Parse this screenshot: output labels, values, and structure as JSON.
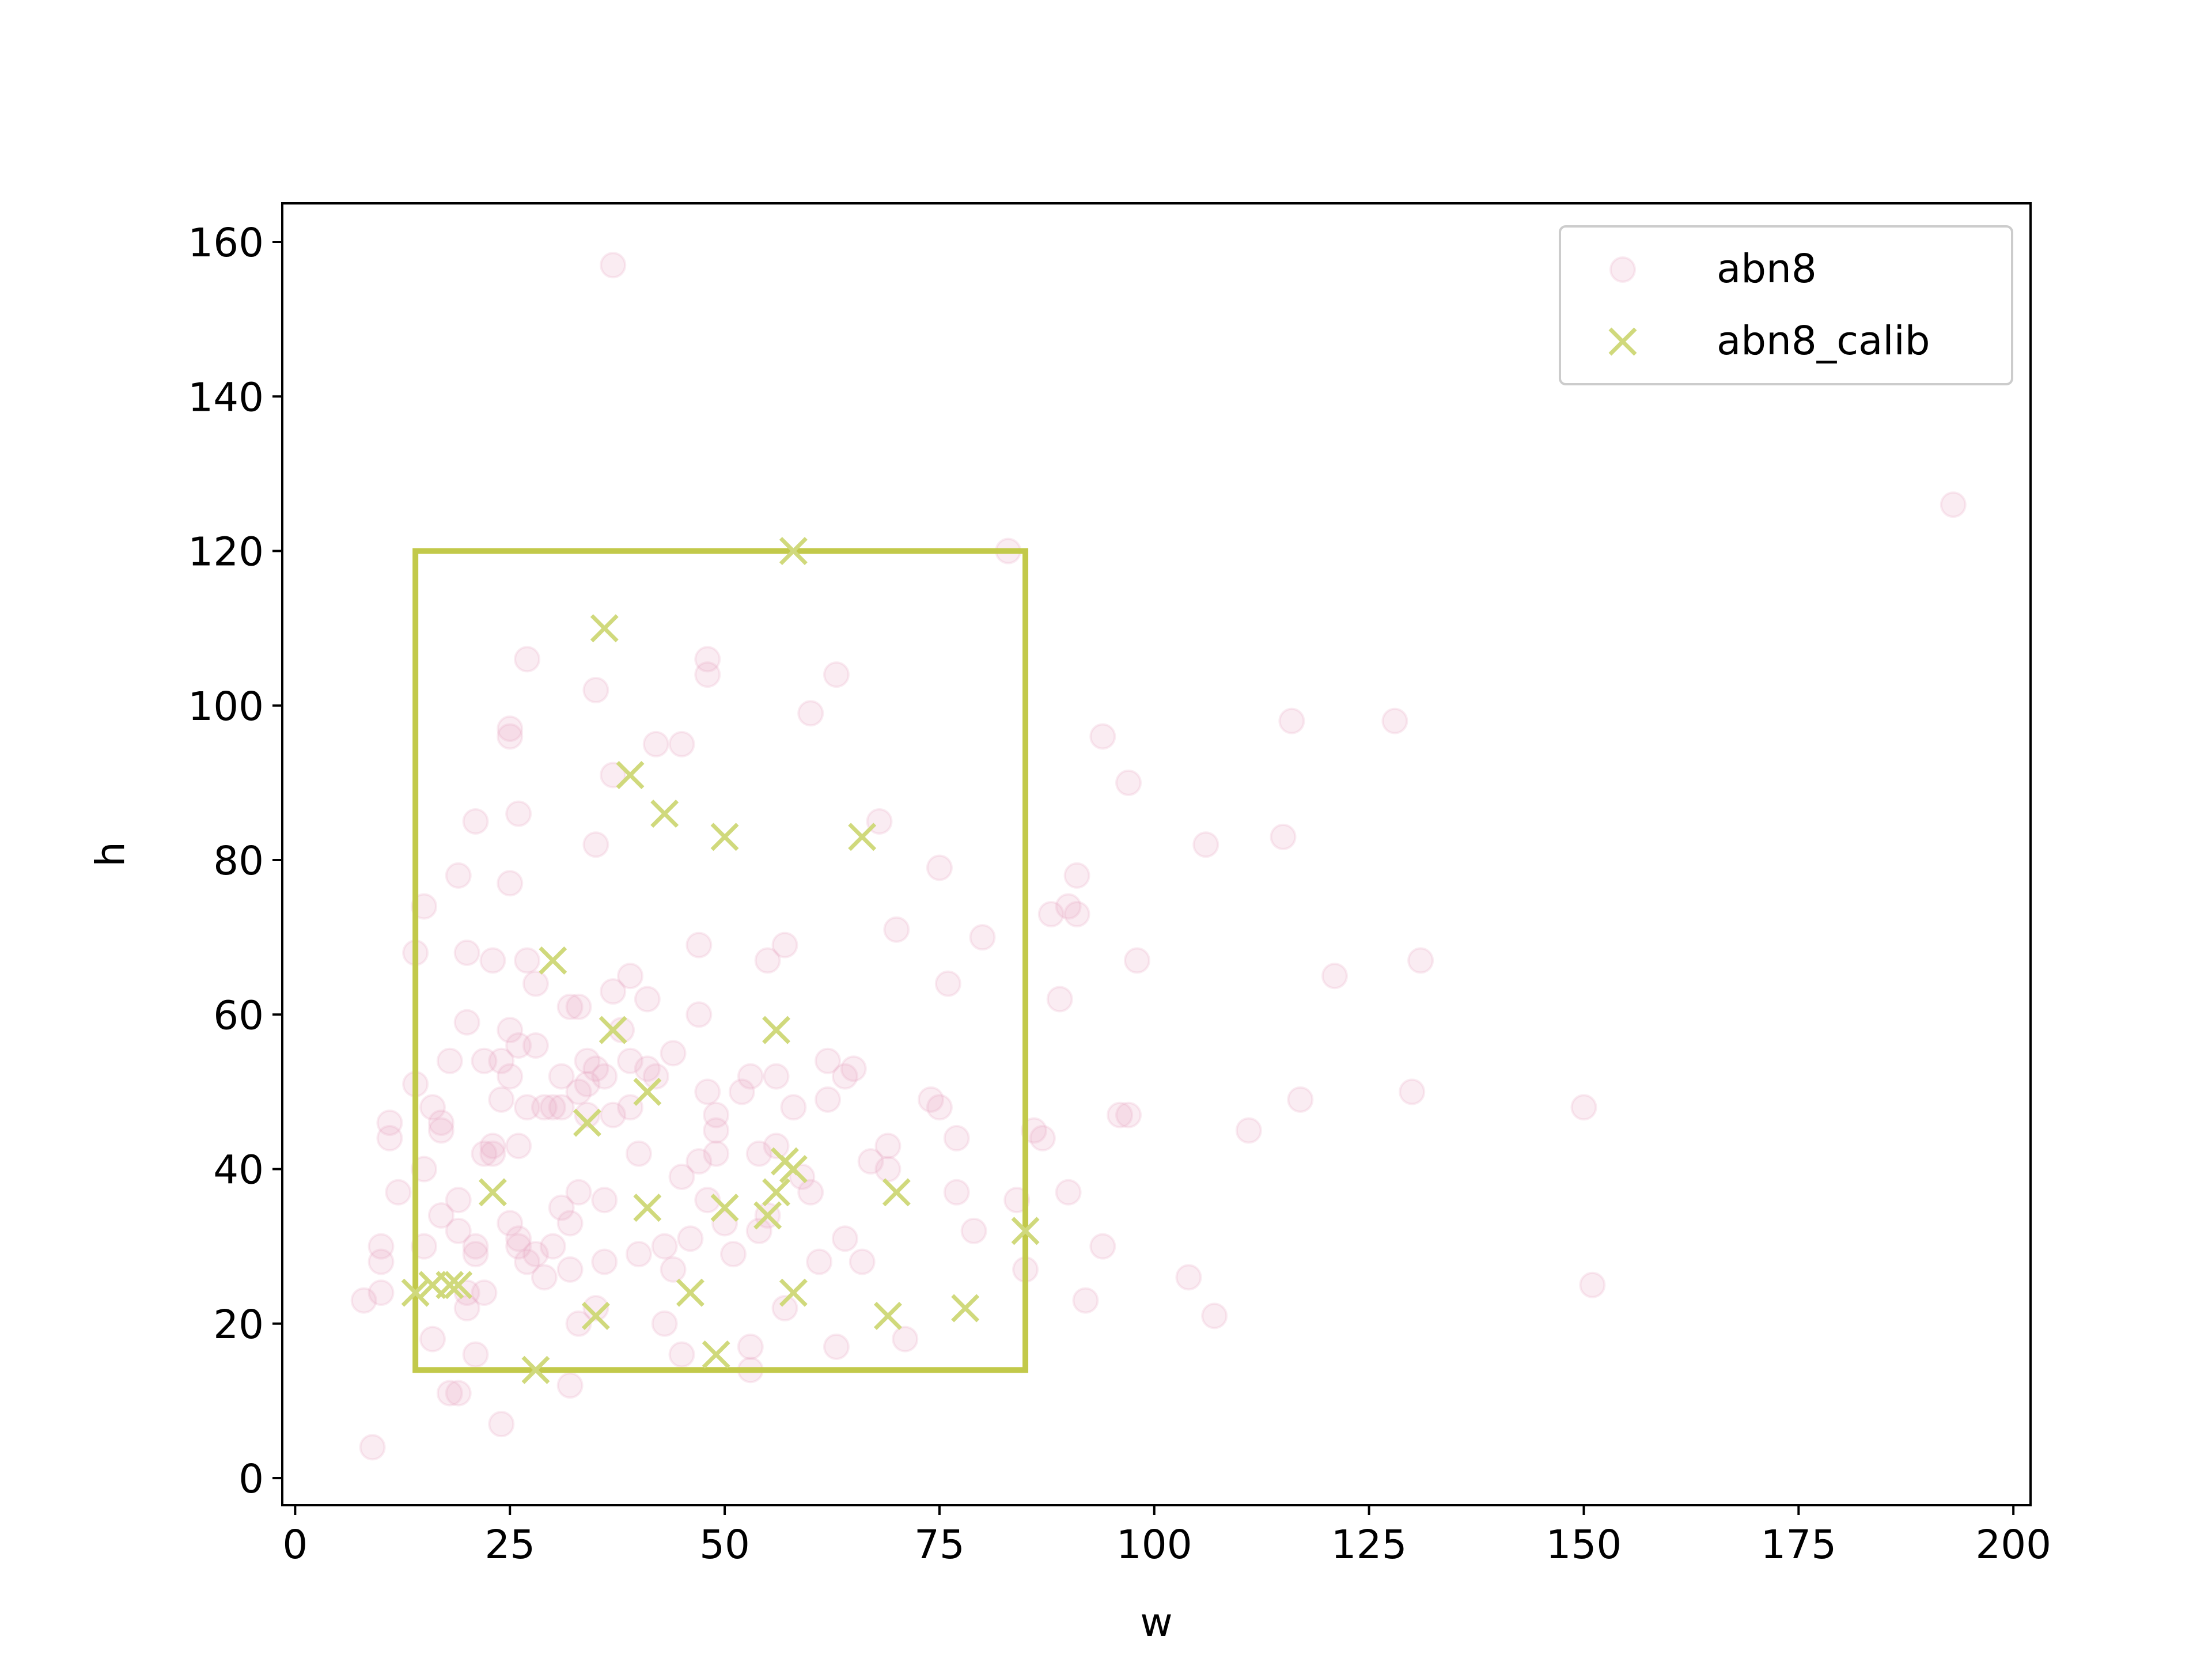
{
  "chart_data": {
    "type": "scatter",
    "title": "",
    "xlabel": "w",
    "ylabel": "h",
    "xlim": [
      -1.5,
      202
    ],
    "ylim": [
      -3.5,
      165
    ],
    "xticks": [
      0,
      25,
      50,
      75,
      100,
      125,
      150,
      175,
      200
    ],
    "yticks": [
      0,
      20,
      40,
      60,
      80,
      100,
      120,
      140,
      160
    ],
    "grid": false,
    "legend_position": "top-right",
    "series": [
      {
        "name": "abn8",
        "marker": "circle",
        "color": "#e8a0bc",
        "alpha": 0.2,
        "points": [
          [
            9,
            4
          ],
          [
            8,
            23
          ],
          [
            10,
            24
          ],
          [
            10,
            28
          ],
          [
            10,
            30
          ],
          [
            11,
            44
          ],
          [
            11,
            46
          ],
          [
            12,
            37
          ],
          [
            14,
            51
          ],
          [
            14,
            68
          ],
          [
            15,
            74
          ],
          [
            15,
            40
          ],
          [
            15,
            30
          ],
          [
            16,
            48
          ],
          [
            16,
            18
          ],
          [
            17,
            45
          ],
          [
            17,
            46
          ],
          [
            17,
            34
          ],
          [
            18,
            54
          ],
          [
            18,
            11
          ],
          [
            19,
            11
          ],
          [
            19,
            78
          ],
          [
            19,
            36
          ],
          [
            19,
            32
          ],
          [
            20,
            68
          ],
          [
            20,
            59
          ],
          [
            20,
            24
          ],
          [
            20,
            22
          ],
          [
            21,
            85
          ],
          [
            21,
            30
          ],
          [
            21,
            29
          ],
          [
            21,
            16
          ],
          [
            22,
            54
          ],
          [
            22,
            42
          ],
          [
            22,
            24
          ],
          [
            23,
            67
          ],
          [
            23,
            43
          ],
          [
            23,
            42
          ],
          [
            24,
            54
          ],
          [
            24,
            49
          ],
          [
            24,
            7
          ],
          [
            25,
            77
          ],
          [
            25,
            58
          ],
          [
            25,
            52
          ],
          [
            25,
            96
          ],
          [
            25,
            97
          ],
          [
            25,
            33
          ],
          [
            26,
            86
          ],
          [
            26,
            56
          ],
          [
            26,
            43
          ],
          [
            26,
            31
          ],
          [
            26,
            30
          ],
          [
            27,
            106
          ],
          [
            27,
            67
          ],
          [
            27,
            48
          ],
          [
            27,
            28
          ],
          [
            28,
            56
          ],
          [
            28,
            64
          ],
          [
            28,
            29
          ],
          [
            29,
            26
          ],
          [
            29,
            48
          ],
          [
            30,
            48
          ],
          [
            30,
            30
          ],
          [
            31,
            52
          ],
          [
            31,
            35
          ],
          [
            31,
            48
          ],
          [
            32,
            61
          ],
          [
            32,
            33
          ],
          [
            32,
            12
          ],
          [
            32,
            27
          ],
          [
            33,
            61
          ],
          [
            33,
            50
          ],
          [
            33,
            37
          ],
          [
            33,
            20
          ],
          [
            34,
            54
          ],
          [
            34,
            51
          ],
          [
            34,
            47
          ],
          [
            35,
            102
          ],
          [
            35,
            82
          ],
          [
            35,
            53
          ],
          [
            35,
            22
          ],
          [
            36,
            52
          ],
          [
            36,
            36
          ],
          [
            36,
            28
          ],
          [
            37,
            157
          ],
          [
            37,
            91
          ],
          [
            37,
            63
          ],
          [
            37,
            47
          ],
          [
            38,
            58
          ],
          [
            39,
            65
          ],
          [
            39,
            54
          ],
          [
            39,
            48
          ],
          [
            40,
            42
          ],
          [
            40,
            29
          ],
          [
            41,
            62
          ],
          [
            41,
            53
          ],
          [
            42,
            95
          ],
          [
            42,
            52
          ],
          [
            43,
            30
          ],
          [
            43,
            20
          ],
          [
            44,
            55
          ],
          [
            44,
            27
          ],
          [
            45,
            95
          ],
          [
            45,
            16
          ],
          [
            45,
            39
          ],
          [
            46,
            31
          ],
          [
            47,
            60
          ],
          [
            47,
            69
          ],
          [
            47,
            41
          ],
          [
            48,
            106
          ],
          [
            48,
            104
          ],
          [
            48,
            50
          ],
          [
            48,
            36
          ],
          [
            49,
            47
          ],
          [
            49,
            45
          ],
          [
            49,
            42
          ],
          [
            50,
            33
          ],
          [
            51,
            29
          ],
          [
            52,
            50
          ],
          [
            53,
            17
          ],
          [
            53,
            14
          ],
          [
            53,
            52
          ],
          [
            54,
            42
          ],
          [
            54,
            32
          ],
          [
            55,
            67
          ],
          [
            55,
            34
          ],
          [
            56,
            52
          ],
          [
            56,
            43
          ],
          [
            57,
            69
          ],
          [
            57,
            22
          ],
          [
            58,
            48
          ],
          [
            59,
            39
          ],
          [
            60,
            99
          ],
          [
            60,
            37
          ],
          [
            61,
            28
          ],
          [
            62,
            54
          ],
          [
            62,
            49
          ],
          [
            63,
            104
          ],
          [
            63,
            17
          ],
          [
            64,
            52
          ],
          [
            64,
            31
          ],
          [
            65,
            53
          ],
          [
            66,
            28
          ],
          [
            67,
            41
          ],
          [
            68,
            85
          ],
          [
            69,
            43
          ],
          [
            69,
            40
          ],
          [
            70,
            71
          ],
          [
            71,
            18
          ],
          [
            74,
            49
          ],
          [
            75,
            79
          ],
          [
            75,
            48
          ],
          [
            76,
            64
          ],
          [
            77,
            44
          ],
          [
            77,
            37
          ],
          [
            79,
            32
          ],
          [
            80,
            70
          ],
          [
            83,
            120
          ],
          [
            84,
            36
          ],
          [
            85,
            27
          ],
          [
            86,
            45
          ],
          [
            87,
            44
          ],
          [
            88,
            73
          ],
          [
            89,
            62
          ],
          [
            90,
            74
          ],
          [
            90,
            37
          ],
          [
            91,
            78
          ],
          [
            91,
            73
          ],
          [
            92,
            23
          ],
          [
            94,
            96
          ],
          [
            94,
            30
          ],
          [
            96,
            47
          ],
          [
            97,
            47
          ],
          [
            97,
            90
          ],
          [
            98,
            67
          ],
          [
            104,
            26
          ],
          [
            106,
            82
          ],
          [
            107,
            21
          ],
          [
            111,
            45
          ],
          [
            115,
            83
          ],
          [
            116,
            98
          ],
          [
            117,
            49
          ],
          [
            121,
            65
          ],
          [
            128,
            98
          ],
          [
            130,
            50
          ],
          [
            131,
            67
          ],
          [
            150,
            48
          ],
          [
            151,
            25
          ],
          [
            193,
            126
          ]
        ]
      },
      {
        "name": "abn8_calib",
        "marker": "x",
        "color": "#d0d97c",
        "alpha": 1,
        "points": [
          [
            14,
            24
          ],
          [
            16,
            25
          ],
          [
            18,
            25
          ],
          [
            19,
            25
          ],
          [
            23,
            37
          ],
          [
            28,
            14
          ],
          [
            30,
            67
          ],
          [
            34,
            46
          ],
          [
            35,
            21
          ],
          [
            36,
            110
          ],
          [
            37,
            58
          ],
          [
            39,
            91
          ],
          [
            41,
            35
          ],
          [
            41,
            50
          ],
          [
            43,
            86
          ],
          [
            46,
            24
          ],
          [
            49,
            16
          ],
          [
            50,
            83
          ],
          [
            50,
            35
          ],
          [
            55,
            34
          ],
          [
            56,
            58
          ],
          [
            56,
            37
          ],
          [
            57,
            41
          ],
          [
            58,
            40
          ],
          [
            58,
            120
          ],
          [
            58,
            24
          ],
          [
            66,
            83
          ],
          [
            69,
            21
          ],
          [
            70,
            37
          ],
          [
            78,
            22
          ],
          [
            85,
            32
          ]
        ]
      }
    ],
    "annotations": {
      "box": {
        "color": "#c2c94a",
        "x_range": [
          14,
          85
        ],
        "y_range": [
          14,
          120
        ]
      }
    }
  }
}
